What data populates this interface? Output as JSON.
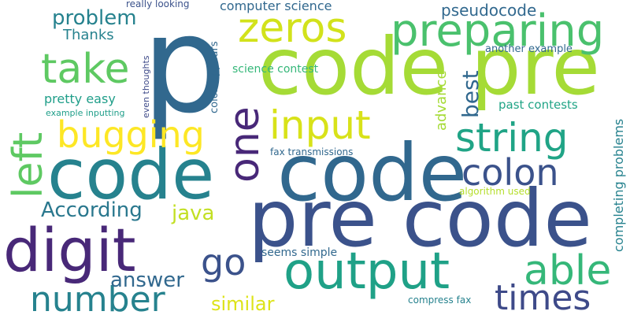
{
  "palette": {
    "background": "#ffffff",
    "colors": [
      "#3b528b",
      "#31688e",
      "#26828e",
      "#1f9e89",
      "#35b779",
      "#6ece58",
      "#b5de2b",
      "#dde318",
      "#482878",
      "#440154"
    ]
  },
  "words": [
    {
      "text": "p",
      "color": "#31688e"
    },
    {
      "text": "code",
      "color": "#a5db36"
    },
    {
      "text": "pre",
      "color": "#a5db36"
    },
    {
      "text": "code",
      "color": "#26828e"
    },
    {
      "text": "code",
      "color": "#31688e"
    },
    {
      "text": "pre code",
      "color": "#3b528b"
    },
    {
      "text": "digit",
      "color": "#482878"
    },
    {
      "text": "output",
      "color": "#1fa187"
    },
    {
      "text": "number",
      "color": "#26828e"
    },
    {
      "text": "times",
      "color": "#3e4a89"
    },
    {
      "text": "zeros",
      "color": "#d2e21b"
    },
    {
      "text": "preparing",
      "color": "#4ac16d"
    },
    {
      "text": "take",
      "color": "#5ec962"
    },
    {
      "text": "one",
      "color": "#482878"
    },
    {
      "text": "bugging",
      "color": "#fde725"
    },
    {
      "text": "left",
      "color": "#5ec962"
    },
    {
      "text": "input",
      "color": "#d8e219"
    },
    {
      "text": "string",
      "color": "#20a486"
    },
    {
      "text": "colon",
      "color": "#3b528b"
    },
    {
      "text": "able",
      "color": "#35b779"
    },
    {
      "text": "go",
      "color": "#3b528b"
    },
    {
      "text": "best",
      "color": "#31688e"
    },
    {
      "text": "problem",
      "color": "#26828e"
    },
    {
      "text": "Thanks",
      "color": "#26828e"
    },
    {
      "text": "According",
      "color": "#2a788e"
    },
    {
      "text": "java",
      "color": "#c2df23"
    },
    {
      "text": "answer",
      "color": "#31688e"
    },
    {
      "text": "similar",
      "color": "#dde318"
    },
    {
      "text": "pseudocode",
      "color": "#31688e"
    },
    {
      "text": "computer science",
      "color": "#31688e"
    },
    {
      "text": "really looking",
      "color": "#3b528b"
    },
    {
      "text": "science contest",
      "color": "#35b779"
    },
    {
      "text": "pretty easy",
      "color": "#1f9e89"
    },
    {
      "text": "example inputting",
      "color": "#1f9e89"
    },
    {
      "text": "another example",
      "color": "#31688e"
    },
    {
      "text": "past contests",
      "color": "#20a486"
    },
    {
      "text": "fax transmissions",
      "color": "#31688e"
    },
    {
      "text": "algorithm used",
      "color": "#b5de2b"
    },
    {
      "text": "seems simple",
      "color": "#31688e"
    },
    {
      "text": "compress fax",
      "color": "#26828e"
    },
    {
      "text": "advance",
      "color": "#a5db36"
    },
    {
      "text": "even thoughts",
      "color": "#3e4a89"
    },
    {
      "text": "colon appears",
      "color": "#31688e"
    },
    {
      "text": "completing problems",
      "color": "#26828e"
    }
  ]
}
